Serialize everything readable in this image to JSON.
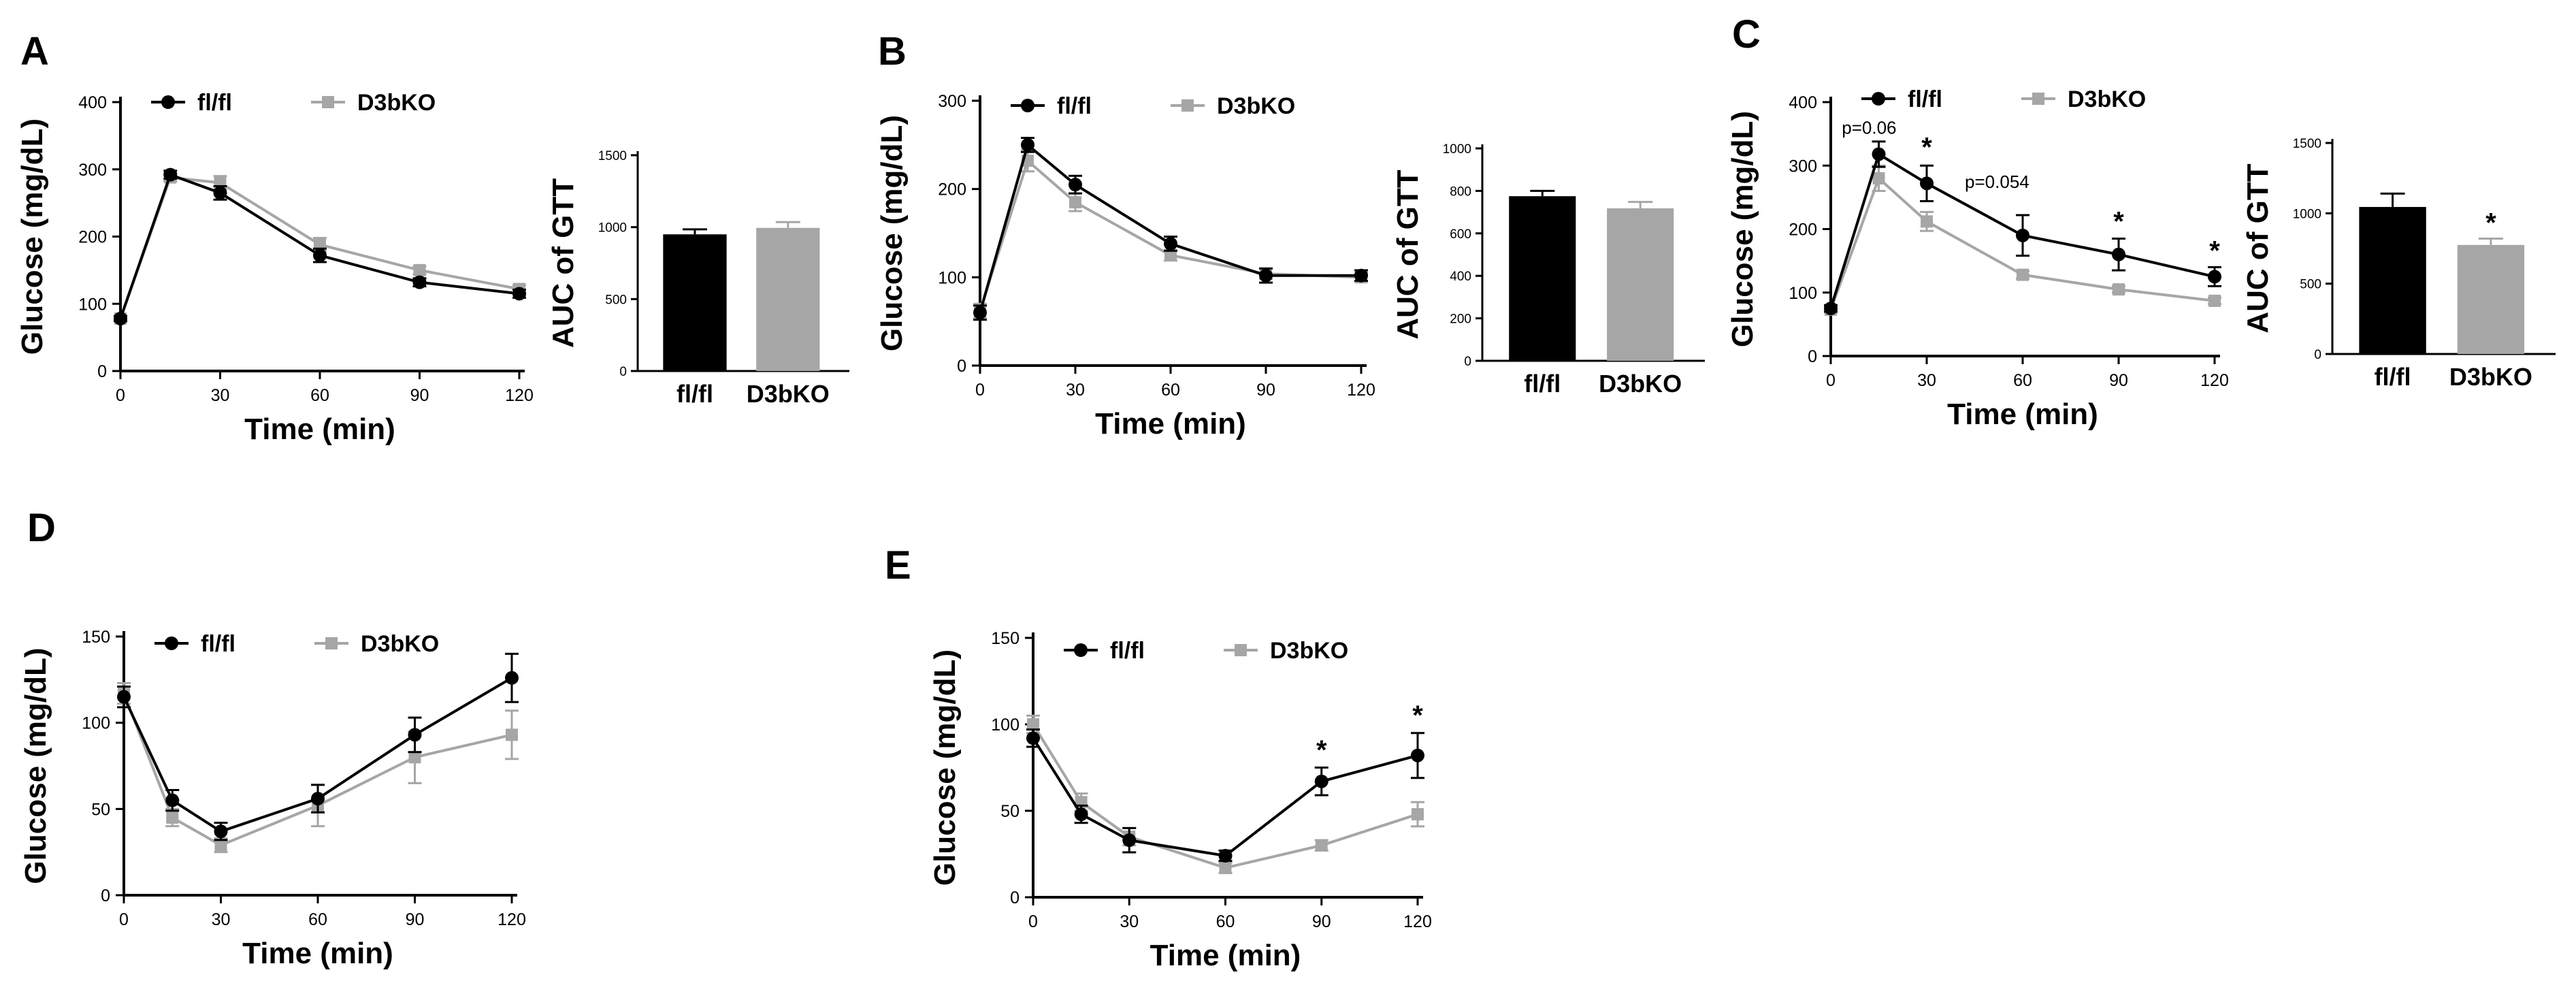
{
  "colors": {
    "flfl": "#000000",
    "d3bko": "#a6a6a6",
    "axis": "#000000"
  },
  "chart_data": [
    {
      "id": "A-line",
      "panel_label": "A",
      "type": "line",
      "xlabel": "Time (min)",
      "ylabel": "Glucose (mg/dL)",
      "x_ticks": [
        "0",
        "30",
        "60",
        "90",
        "120"
      ],
      "y_ticks": [
        "0",
        "100",
        "200",
        "300",
        "400"
      ],
      "xlim": [
        0,
        120
      ],
      "ylim": [
        0,
        400
      ],
      "legend": [
        "fl/fl",
        "D3bKO"
      ],
      "series": [
        {
          "name": "fl/fl",
          "x": [
            0,
            15,
            30,
            60,
            90,
            120
          ],
          "values": [
            78,
            292,
            265,
            172,
            132,
            115
          ],
          "err": [
            4,
            6,
            10,
            10,
            6,
            6
          ]
        },
        {
          "name": "D3bKO",
          "x": [
            0,
            15,
            30,
            60,
            90,
            120
          ],
          "values": [
            78,
            288,
            280,
            188,
            150,
            122
          ],
          "err": [
            4,
            6,
            10,
            10,
            6,
            6
          ]
        }
      ],
      "annotations": []
    },
    {
      "id": "A-bar",
      "type": "bar",
      "ylabel": "AUC of GTT",
      "categories": [
        "fl/fl",
        "D3bKO"
      ],
      "y_ticks": [
        "0",
        "500",
        "1000",
        "1500"
      ],
      "ylim": [
        0,
        1500
      ],
      "values": [
        950,
        995
      ],
      "err": [
        35,
        40
      ],
      "annotations": []
    },
    {
      "id": "B-line",
      "panel_label": "B",
      "type": "line",
      "xlabel": "Time (min)",
      "ylabel": "Glucose (mg/dL)",
      "x_ticks": [
        "0",
        "30",
        "60",
        "90",
        "120"
      ],
      "y_ticks": [
        "0",
        "100",
        "200",
        "300"
      ],
      "xlim": [
        0,
        120
      ],
      "ylim": [
        0,
        300
      ],
      "legend": [
        "fl/fl",
        "D3bKO"
      ],
      "series": [
        {
          "name": "fl/fl",
          "x": [
            0,
            15,
            30,
            60,
            90,
            120
          ],
          "values": [
            60,
            250,
            205,
            138,
            102,
            102
          ],
          "err": [
            8,
            8,
            10,
            8,
            8,
            6
          ]
        },
        {
          "name": "D3bKO",
          "x": [
            0,
            15,
            30,
            60,
            90,
            120
          ],
          "values": [
            62,
            232,
            185,
            125,
            104,
            100
          ],
          "err": [
            8,
            12,
            10,
            6,
            6,
            5
          ]
        }
      ],
      "annotations": []
    },
    {
      "id": "B-bar",
      "type": "bar",
      "ylabel": "AUC of GTT",
      "categories": [
        "fl/fl",
        "D3bKO"
      ],
      "y_ticks": [
        "0",
        "200",
        "400",
        "600",
        "800",
        "1000"
      ],
      "ylim": [
        0,
        1000
      ],
      "values": [
        775,
        718
      ],
      "err": [
        25,
        30
      ],
      "annotations": []
    },
    {
      "id": "C-line",
      "panel_label": "C",
      "type": "line",
      "xlabel": "Time (min)",
      "ylabel": "Glucose (mg/dL)",
      "x_ticks": [
        "0",
        "30",
        "60",
        "90",
        "120"
      ],
      "y_ticks": [
        "0",
        "100",
        "200",
        "300",
        "400"
      ],
      "xlim": [
        0,
        120
      ],
      "ylim": [
        0,
        400
      ],
      "legend": [
        "fl/fl",
        "D3bKO"
      ],
      "series": [
        {
          "name": "fl/fl",
          "x": [
            0,
            15,
            30,
            60,
            90,
            120
          ],
          "values": [
            75,
            318,
            272,
            190,
            160,
            125
          ],
          "err": [
            5,
            20,
            28,
            32,
            25,
            15
          ]
        },
        {
          "name": "D3bKO",
          "x": [
            0,
            15,
            30,
            60,
            90,
            120
          ],
          "values": [
            73,
            280,
            212,
            128,
            105,
            87
          ],
          "err": [
            5,
            20,
            15,
            6,
            5,
            5
          ]
        }
      ],
      "annotations": [
        {
          "text": "p=0.06",
          "x": 12,
          "y": 350,
          "size": 26
        },
        {
          "text": "*",
          "x": 30,
          "y": 315,
          "size": 40
        },
        {
          "text": "p=0.054",
          "x": 52,
          "y": 265,
          "size": 26
        },
        {
          "text": "*",
          "x": 90,
          "y": 198,
          "size": 40
        },
        {
          "text": "*",
          "x": 120,
          "y": 152,
          "size": 40
        }
      ]
    },
    {
      "id": "C-bar",
      "type": "bar",
      "ylabel": "AUC of GTT",
      "categories": [
        "fl/fl",
        "D3bKO"
      ],
      "y_ticks": [
        "0",
        "500",
        "1000",
        "1500"
      ],
      "ylim": [
        0,
        1500
      ],
      "values": [
        1045,
        775
      ],
      "err": [
        95,
        45
      ],
      "annotations": [
        {
          "text": "*",
          "index": 1
        }
      ]
    },
    {
      "id": "D-line",
      "panel_label": "D",
      "type": "line",
      "xlabel": "Time (min)",
      "ylabel": "Glucose (mg/dL)",
      "x_ticks": [
        "0",
        "30",
        "60",
        "90",
        "120"
      ],
      "y_ticks": [
        "0",
        "50",
        "100",
        "150"
      ],
      "xlim": [
        0,
        120
      ],
      "ylim": [
        0,
        150
      ],
      "legend": [
        "fl/fl",
        "D3bKO"
      ],
      "series": [
        {
          "name": "fl/fl",
          "x": [
            0,
            15,
            30,
            60,
            90,
            120
          ],
          "values": [
            115,
            55,
            37,
            56,
            93,
            126
          ],
          "err": [
            6,
            6,
            5,
            8,
            10,
            14
          ]
        },
        {
          "name": "D3bKO",
          "x": [
            0,
            15,
            30,
            60,
            90,
            120
          ],
          "values": [
            117,
            45,
            29,
            52,
            80,
            93
          ],
          "err": [
            6,
            5,
            4,
            12,
            15,
            14
          ]
        }
      ],
      "annotations": []
    },
    {
      "id": "E-line",
      "panel_label": "E",
      "type": "line",
      "xlabel": "Time (min)",
      "ylabel": "Glucose (mg/dL)",
      "x_ticks": [
        "0",
        "30",
        "60",
        "90",
        "120"
      ],
      "y_ticks": [
        "0",
        "50",
        "100",
        "150"
      ],
      "xlim": [
        0,
        120
      ],
      "ylim": [
        0,
        150
      ],
      "legend": [
        "fl/fl",
        "D3bKO"
      ],
      "series": [
        {
          "name": "fl/fl",
          "x": [
            0,
            15,
            30,
            60,
            90,
            120
          ],
          "values": [
            92,
            48,
            33,
            24,
            67,
            82
          ],
          "err": [
            5,
            5,
            7,
            3,
            8,
            13
          ]
        },
        {
          "name": "D3bKO",
          "x": [
            0,
            15,
            30,
            60,
            90,
            120
          ],
          "values": [
            100,
            55,
            35,
            17,
            30,
            48
          ],
          "err": [
            5,
            5,
            5,
            3,
            3,
            7
          ]
        }
      ],
      "annotations": [
        {
          "text": "*",
          "x": 90,
          "y": 80,
          "size": 40
        },
        {
          "text": "*",
          "x": 120,
          "y": 100,
          "size": 40
        }
      ]
    }
  ]
}
